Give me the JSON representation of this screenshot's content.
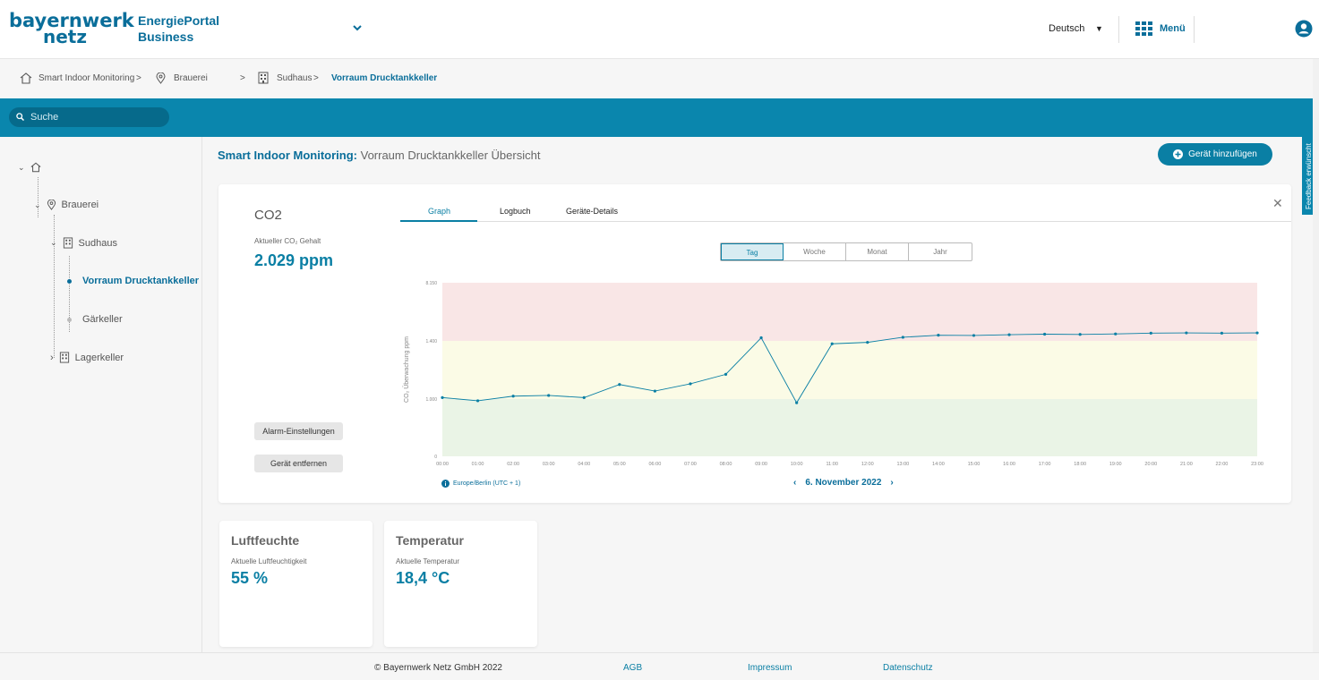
{
  "header": {
    "logo_line1": "bayernwerk",
    "logo_line2": "netz",
    "portal_line1": "EnergiePortal",
    "portal_line2": "Business",
    "language": "Deutsch",
    "menu_label": "Menü"
  },
  "breadcrumb": {
    "items": [
      "Smart Indoor Monitoring",
      "Brauerei",
      "Sudhaus",
      "Vorraum Drucktankkeller"
    ]
  },
  "search": {
    "placeholder": "Suche"
  },
  "sidebar": {
    "items": [
      {
        "label": "Brauerei"
      },
      {
        "label": "Sudhaus"
      },
      {
        "label": "Vorraum Drucktankkeller"
      },
      {
        "label": "Gärkeller"
      },
      {
        "label": "Lagerkeller"
      }
    ]
  },
  "page": {
    "title_prefix": "Smart Indoor Monitoring:",
    "title_rest": "Vorraum Drucktankkeller Übersicht",
    "add_button": "Gerät hinzufügen",
    "feedback": "Feedback erwünscht"
  },
  "co2": {
    "title": "CO2",
    "sub_label": "Aktueller CO₂ Gehalt",
    "value": "2.029 ppm",
    "alarm_button": "Alarm-Einstellungen",
    "remove_button": "Gerät entfernen",
    "tabs": [
      "Graph",
      "Logbuch",
      "Geräte-Details"
    ],
    "periods": [
      "Tag",
      "Woche",
      "Monat",
      "Jahr"
    ],
    "timezone": "Europe/Berlin (UTC + 1)",
    "date": "6. November 2022",
    "prev": "‹",
    "next": "›"
  },
  "chart_data": {
    "type": "line",
    "ylabel": "CO₂ Überwachung ppm",
    "y_ticks": [
      "0",
      "1.000",
      "1.400",
      "8.150"
    ],
    "x": [
      "00:00",
      "01:00",
      "02:00",
      "03:00",
      "04:00",
      "05:00",
      "06:00",
      "07:00",
      "08:00",
      "09:00",
      "10:00",
      "11:00",
      "12:00",
      "13:00",
      "14:00",
      "15:00",
      "16:00",
      "17:00",
      "18:00",
      "19:00",
      "20:00",
      "21:00",
      "22:00",
      "23:00"
    ],
    "values": [
      1010,
      970,
      1020,
      1025,
      1010,
      1100,
      1055,
      1105,
      1170,
      1460,
      935,
      1380,
      1390,
      1470,
      1510,
      1505,
      1520,
      1530,
      1525,
      1535,
      1550,
      1555,
      1550,
      1555
    ],
    "bands": [
      {
        "from": 0,
        "to": 1000,
        "color": "#eaf4e6"
      },
      {
        "from": 1000,
        "to": 1400,
        "color": "#fbfbe6"
      },
      {
        "from": 1400,
        "to": 8150,
        "color": "#f9e6e6"
      }
    ],
    "line_color": "#0a7fa4"
  },
  "humidity": {
    "title": "Luftfeuchte",
    "sub_label": "Aktuelle Luftfeuchtigkeit",
    "value": "55 %"
  },
  "temperature": {
    "title": "Temperatur",
    "sub_label": "Aktuelle Temperatur",
    "value": "18,4 °C"
  },
  "footer": {
    "copyright": "© Bayernwerk Netz GmbH 2022",
    "agb": "AGB",
    "impressum": "Impressum",
    "datenschutz": "Datenschutz"
  }
}
